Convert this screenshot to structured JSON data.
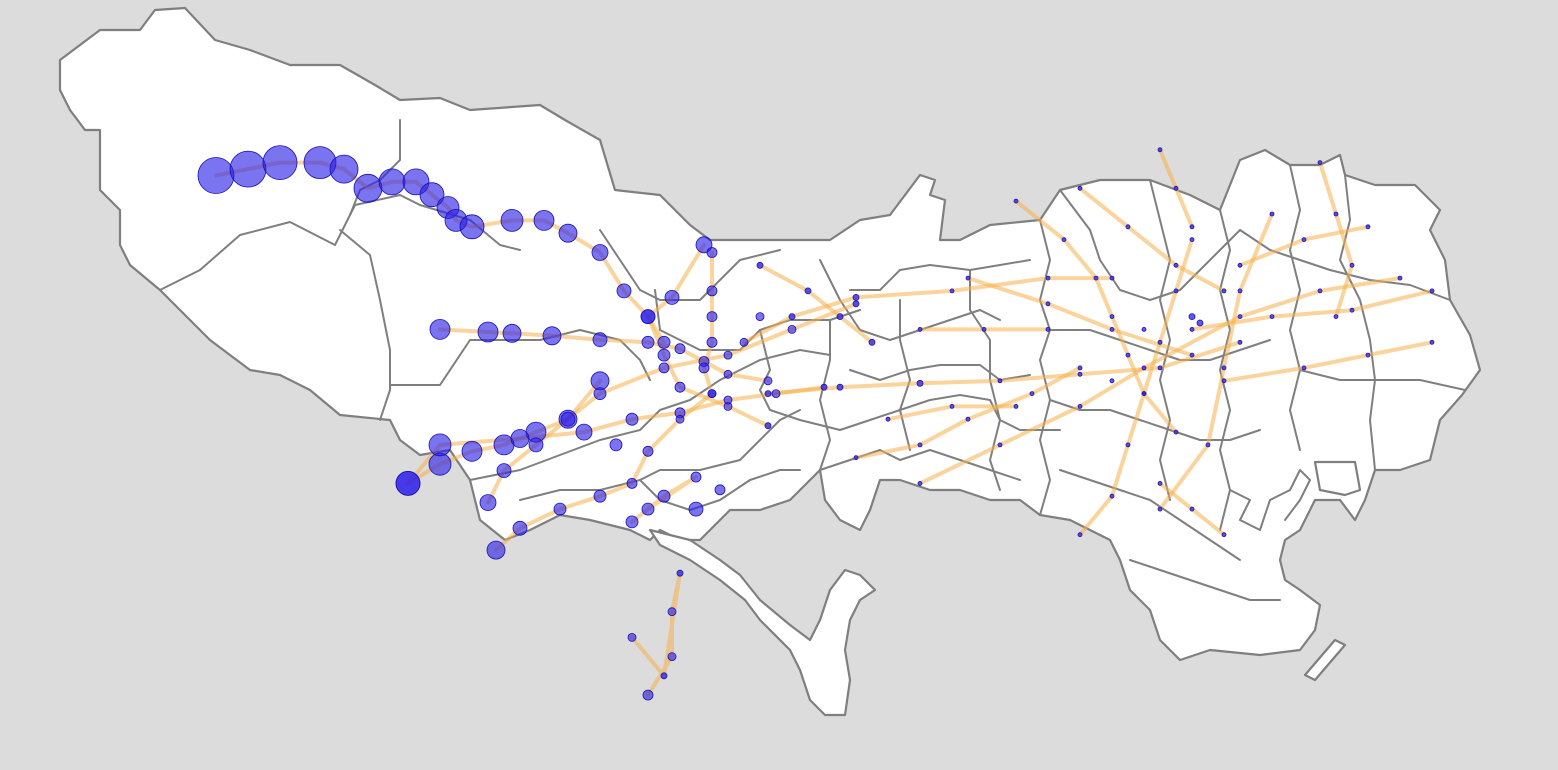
{
  "map": {
    "colors": {
      "background": "#dcdcdc",
      "land": "#ffffff",
      "border": "#7f7f7f",
      "line": "#f6b04a",
      "station": "#2a1fe8",
      "station_edge": "#1a10b0"
    },
    "station_size_range": [
      2,
      18
    ],
    "lines": [
      {
        "stations": [
          {
            "lon": 139.16,
            "lat": 35.81,
            "r": 18
          },
          {
            "lon": 139.18,
            "lat": 35.815,
            "r": 18
          },
          {
            "lon": 139.2,
            "lat": 35.82,
            "r": 17
          },
          {
            "lon": 139.225,
            "lat": 35.82,
            "r": 16
          },
          {
            "lon": 139.24,
            "lat": 35.815,
            "r": 14
          },
          {
            "lon": 139.255,
            "lat": 35.8,
            "r": 14
          },
          {
            "lon": 139.27,
            "lat": 35.805,
            "r": 13
          },
          {
            "lon": 139.285,
            "lat": 35.805,
            "r": 13
          },
          {
            "lon": 139.295,
            "lat": 35.795,
            "r": 12
          },
          {
            "lon": 139.305,
            "lat": 35.785,
            "r": 11
          },
          {
            "lon": 139.31,
            "lat": 35.775,
            "r": 11
          },
          {
            "lon": 139.32,
            "lat": 35.77,
            "r": 12
          },
          {
            "lon": 139.345,
            "lat": 35.775,
            "r": 11
          },
          {
            "lon": 139.365,
            "lat": 35.775,
            "r": 10
          },
          {
            "lon": 139.38,
            "lat": 35.765,
            "r": 9
          },
          {
            "lon": 139.4,
            "lat": 35.75,
            "r": 8
          },
          {
            "lon": 139.415,
            "lat": 35.72,
            "r": 7
          },
          {
            "lon": 139.43,
            "lat": 35.7,
            "r": 7
          },
          {
            "lon": 139.44,
            "lat": 35.67,
            "r": 6
          },
          {
            "lon": 139.45,
            "lat": 35.645,
            "r": 5
          },
          {
            "lon": 139.48,
            "lat": 35.63,
            "r": 4
          },
          {
            "lon": 139.505,
            "lat": 35.615,
            "r": 3
          }
        ]
      },
      {
        "stations": [
          {
            "lon": 139.3,
            "lat": 35.69,
            "r": 10
          },
          {
            "lon": 139.33,
            "lat": 35.688,
            "r": 10
          },
          {
            "lon": 139.345,
            "lat": 35.687,
            "r": 9
          },
          {
            "lon": 139.37,
            "lat": 35.685,
            "r": 9
          },
          {
            "lon": 139.4,
            "lat": 35.682,
            "r": 7
          },
          {
            "lon": 139.43,
            "lat": 35.68,
            "r": 6
          },
          {
            "lon": 139.45,
            "lat": 35.675,
            "r": 5
          },
          {
            "lon": 139.465,
            "lat": 35.665,
            "r": 5
          },
          {
            "lon": 139.48,
            "lat": 35.655,
            "r": 4
          },
          {
            "lon": 139.505,
            "lat": 35.65,
            "r": 4
          }
        ]
      },
      {
        "stations": [
          {
            "lon": 139.465,
            "lat": 35.756,
            "r": 8
          },
          {
            "lon": 139.445,
            "lat": 35.715,
            "r": 7
          },
          {
            "lon": 139.43,
            "lat": 35.7,
            "r": 7
          },
          {
            "lon": 139.44,
            "lat": 35.68,
            "r": 6
          }
        ]
      },
      {
        "stations": [
          {
            "lon": 139.4,
            "lat": 35.65,
            "r": 9
          },
          {
            "lon": 139.38,
            "lat": 35.62,
            "r": 9
          },
          {
            "lon": 139.36,
            "lat": 35.61,
            "r": 10
          },
          {
            "lon": 139.34,
            "lat": 35.6,
            "r": 10
          },
          {
            "lon": 139.32,
            "lat": 35.595,
            "r": 10
          },
          {
            "lon": 139.3,
            "lat": 35.585,
            "r": 11
          },
          {
            "lon": 139.28,
            "lat": 35.57,
            "r": 12
          }
        ]
      },
      {
        "stations": [
          {
            "lon": 139.28,
            "lat": 35.57,
            "r": 12
          },
          {
            "lon": 139.3,
            "lat": 35.6,
            "r": 11
          },
          {
            "lon": 139.35,
            "lat": 35.605,
            "r": 9
          },
          {
            "lon": 139.39,
            "lat": 35.61,
            "r": 8
          },
          {
            "lon": 139.42,
            "lat": 35.62,
            "r": 6
          },
          {
            "lon": 139.45,
            "lat": 35.625,
            "r": 5
          },
          {
            "lon": 139.48,
            "lat": 35.635,
            "r": 4
          },
          {
            "lon": 139.51,
            "lat": 35.64,
            "r": 4
          },
          {
            "lon": 139.54,
            "lat": 35.645,
            "r": 3
          }
        ]
      },
      {
        "stations": [
          {
            "lon": 139.33,
            "lat": 35.555,
            "r": 8
          },
          {
            "lon": 139.34,
            "lat": 35.58,
            "r": 7
          },
          {
            "lon": 139.36,
            "lat": 35.6,
            "r": 7
          },
          {
            "lon": 139.38,
            "lat": 35.62,
            "r": 7
          },
          {
            "lon": 139.4,
            "lat": 35.64,
            "r": 6
          },
          {
            "lon": 139.44,
            "lat": 35.66,
            "r": 5
          },
          {
            "lon": 139.48,
            "lat": 35.67,
            "r": 4
          },
          {
            "lon": 139.52,
            "lat": 35.69,
            "r": 4
          },
          {
            "lon": 139.56,
            "lat": 35.71,
            "r": 3
          }
        ]
      },
      {
        "stations": [
          {
            "lon": 139.335,
            "lat": 35.518,
            "r": 9
          },
          {
            "lon": 139.35,
            "lat": 35.535,
            "r": 7
          },
          {
            "lon": 139.375,
            "lat": 35.55,
            "r": 6
          },
          {
            "lon": 139.4,
            "lat": 35.56,
            "r": 6
          },
          {
            "lon": 139.42,
            "lat": 35.57,
            "r": 5
          },
          {
            "lon": 139.43,
            "lat": 35.595,
            "r": 5
          },
          {
            "lon": 139.45,
            "lat": 35.62,
            "r": 4
          },
          {
            "lon": 139.47,
            "lat": 35.64,
            "r": 4
          }
        ]
      },
      {
        "stations": [
          {
            "lon": 139.42,
            "lat": 35.54,
            "r": 6
          },
          {
            "lon": 139.44,
            "lat": 35.56,
            "r": 6
          },
          {
            "lon": 139.46,
            "lat": 35.575,
            "r": 5
          },
          {
            "lon": 139.43,
            "lat": 35.55,
            "r": 6
          }
        ]
      },
      {
        "stations": [
          {
            "lon": 139.43,
            "lat": 35.405,
            "r": 5
          },
          {
            "lon": 139.445,
            "lat": 35.435,
            "r": 4
          },
          {
            "lon": 139.445,
            "lat": 35.47,
            "r": 4
          },
          {
            "lon": 139.45,
            "lat": 35.5,
            "r": 3
          },
          {
            "lon": 139.44,
            "lat": 35.42,
            "r": 3
          },
          {
            "lon": 139.42,
            "lat": 35.45,
            "r": 4
          }
        ]
      },
      {
        "stations": [
          {
            "lon": 139.47,
            "lat": 35.75,
            "r": 5
          },
          {
            "lon": 139.47,
            "lat": 35.72,
            "r": 5
          },
          {
            "lon": 139.47,
            "lat": 35.7,
            "r": 5
          },
          {
            "lon": 139.47,
            "lat": 35.68,
            "r": 5
          },
          {
            "lon": 139.465,
            "lat": 35.66,
            "r": 5
          },
          {
            "lon": 139.47,
            "lat": 35.64,
            "r": 4
          }
        ]
      },
      {
        "stations": [
          {
            "lon": 139.505,
            "lat": 35.64,
            "r": 3
          },
          {
            "lon": 139.55,
            "lat": 35.645,
            "r": 3
          },
          {
            "lon": 139.6,
            "lat": 35.648,
            "r": 3
          },
          {
            "lon": 139.65,
            "lat": 35.65,
            "r": 2
          },
          {
            "lon": 139.7,
            "lat": 35.655,
            "r": 2
          },
          {
            "lon": 139.75,
            "lat": 35.66,
            "r": 2
          },
          {
            "lon": 139.8,
            "lat": 35.68,
            "r": 2
          }
        ]
      },
      {
        "stations": [
          {
            "lon": 139.49,
            "lat": 35.68,
            "r": 4
          },
          {
            "lon": 139.52,
            "lat": 35.7,
            "r": 3
          },
          {
            "lon": 139.56,
            "lat": 35.715,
            "r": 3
          },
          {
            "lon": 139.62,
            "lat": 35.72,
            "r": 2
          },
          {
            "lon": 139.68,
            "lat": 35.73,
            "r": 2
          },
          {
            "lon": 139.72,
            "lat": 35.73,
            "r": 2
          }
        ]
      },
      {
        "stations": [
          {
            "lon": 139.66,
            "lat": 35.79,
            "r": 2
          },
          {
            "lon": 139.69,
            "lat": 35.76,
            "r": 2
          },
          {
            "lon": 139.71,
            "lat": 35.73,
            "r": 2
          },
          {
            "lon": 139.72,
            "lat": 35.7,
            "r": 2
          },
          {
            "lon": 139.73,
            "lat": 35.67,
            "r": 2
          },
          {
            "lon": 139.74,
            "lat": 35.64,
            "r": 2
          },
          {
            "lon": 139.76,
            "lat": 35.61,
            "r": 2
          }
        ]
      },
      {
        "stations": [
          {
            "lon": 139.7,
            "lat": 35.53,
            "r": 2
          },
          {
            "lon": 139.72,
            "lat": 35.56,
            "r": 2
          },
          {
            "lon": 139.73,
            "lat": 35.6,
            "r": 2
          },
          {
            "lon": 139.74,
            "lat": 35.64,
            "r": 2
          },
          {
            "lon": 139.75,
            "lat": 35.68,
            "r": 2
          },
          {
            "lon": 139.76,
            "lat": 35.72,
            "r": 2
          },
          {
            "lon": 139.77,
            "lat": 35.76,
            "r": 2
          }
        ]
      },
      {
        "stations": [
          {
            "lon": 139.6,
            "lat": 35.57,
            "r": 2
          },
          {
            "lon": 139.65,
            "lat": 35.6,
            "r": 2
          },
          {
            "lon": 139.7,
            "lat": 35.63,
            "r": 2
          },
          {
            "lon": 139.74,
            "lat": 35.66,
            "r": 2
          },
          {
            "lon": 139.8,
            "lat": 35.7,
            "r": 2
          },
          {
            "lon": 139.85,
            "lat": 35.72,
            "r": 2
          },
          {
            "lon": 139.9,
            "lat": 35.73,
            "r": 2
          }
        ]
      },
      {
        "stations": [
          {
            "lon": 139.75,
            "lat": 35.55,
            "r": 2
          },
          {
            "lon": 139.78,
            "lat": 35.6,
            "r": 2
          },
          {
            "lon": 139.79,
            "lat": 35.66,
            "r": 2
          },
          {
            "lon": 139.8,
            "lat": 35.72,
            "r": 2
          },
          {
            "lon": 139.82,
            "lat": 35.78,
            "r": 2
          }
        ]
      },
      {
        "stations": [
          {
            "lon": 139.56,
            "lat": 35.59,
            "r": 2
          },
          {
            "lon": 139.6,
            "lat": 35.6,
            "r": 2
          },
          {
            "lon": 139.63,
            "lat": 35.62,
            "r": 2
          },
          {
            "lon": 139.67,
            "lat": 35.64,
            "r": 2
          },
          {
            "lon": 139.7,
            "lat": 35.66,
            "r": 2
          }
        ]
      },
      {
        "stations": [
          {
            "lon": 139.77,
            "lat": 35.69,
            "r": 2
          },
          {
            "lon": 139.82,
            "lat": 35.7,
            "r": 2
          },
          {
            "lon": 139.87,
            "lat": 35.705,
            "r": 2
          },
          {
            "lon": 139.92,
            "lat": 35.72,
            "r": 2
          }
        ]
      },
      {
        "stations": [
          {
            "lon": 139.79,
            "lat": 35.65,
            "r": 2
          },
          {
            "lon": 139.84,
            "lat": 35.66,
            "r": 2
          },
          {
            "lon": 139.88,
            "lat": 35.67,
            "r": 2
          },
          {
            "lon": 139.92,
            "lat": 35.68,
            "r": 2
          }
        ]
      },
      {
        "stations": [
          {
            "lon": 139.8,
            "lat": 35.74,
            "r": 2
          },
          {
            "lon": 139.84,
            "lat": 35.76,
            "r": 2
          },
          {
            "lon": 139.88,
            "lat": 35.77,
            "r": 2
          }
        ]
      },
      {
        "stations": [
          {
            "lon": 139.7,
            "lat": 35.8,
            "r": 2
          },
          {
            "lon": 139.73,
            "lat": 35.77,
            "r": 2
          },
          {
            "lon": 139.76,
            "lat": 35.74,
            "r": 2
          },
          {
            "lon": 139.79,
            "lat": 35.72,
            "r": 2
          }
        ]
      },
      {
        "stations": [
          {
            "lon": 139.63,
            "lat": 35.73,
            "r": 2
          },
          {
            "lon": 139.68,
            "lat": 35.71,
            "r": 2
          },
          {
            "lon": 139.72,
            "lat": 35.69,
            "r": 2
          },
          {
            "lon": 139.77,
            "lat": 35.67,
            "r": 2
          }
        ]
      },
      {
        "stations": [
          {
            "lon": 139.75,
            "lat": 35.83,
            "r": 2
          },
          {
            "lon": 139.76,
            "lat": 35.8,
            "r": 2
          },
          {
            "lon": 139.77,
            "lat": 35.77,
            "r": 2
          }
        ]
      },
      {
        "stations": [
          {
            "lon": 139.85,
            "lat": 35.82,
            "r": 2
          },
          {
            "lon": 139.86,
            "lat": 35.78,
            "r": 2
          },
          {
            "lon": 139.87,
            "lat": 35.74,
            "r": 2
          },
          {
            "lon": 139.86,
            "lat": 35.7,
            "r": 2
          }
        ]
      },
      {
        "stations": [
          {
            "lon": 139.75,
            "lat": 35.57,
            "r": 2
          },
          {
            "lon": 139.77,
            "lat": 35.55,
            "r": 2
          },
          {
            "lon": 139.79,
            "lat": 35.53,
            "r": 2
          }
        ]
      },
      {
        "stations": [
          {
            "lon": 139.58,
            "lat": 35.62,
            "r": 2
          },
          {
            "lon": 139.62,
            "lat": 35.63,
            "r": 2
          },
          {
            "lon": 139.66,
            "lat": 35.63,
            "r": 2
          }
        ]
      },
      {
        "stations": [
          {
            "lon": 139.6,
            "lat": 35.69,
            "r": 2
          },
          {
            "lon": 139.64,
            "lat": 35.69,
            "r": 2
          },
          {
            "lon": 139.68,
            "lat": 35.69,
            "r": 2
          }
        ]
      },
      {
        "stations": [
          {
            "lon": 139.5,
            "lat": 35.74,
            "r": 3
          },
          {
            "lon": 139.53,
            "lat": 35.72,
            "r": 3
          },
          {
            "lon": 139.55,
            "lat": 35.7,
            "r": 3
          },
          {
            "lon": 139.57,
            "lat": 35.68,
            "r": 3
          }
        ]
      }
    ],
    "extra_stations": [
      {
        "lon": 139.46,
        "lat": 35.55,
        "r": 7
      },
      {
        "lon": 139.475,
        "lat": 35.565,
        "r": 5
      },
      {
        "lon": 139.41,
        "lat": 35.6,
        "r": 6
      },
      {
        "lon": 139.5,
        "lat": 35.7,
        "r": 4
      },
      {
        "lon": 139.77,
        "lat": 35.7,
        "r": 3
      },
      {
        "lon": 139.775,
        "lat": 35.695,
        "r": 3
      },
      {
        "lon": 139.74,
        "lat": 35.69,
        "r": 2
      },
      {
        "lon": 139.72,
        "lat": 35.65,
        "r": 2
      }
    ]
  }
}
